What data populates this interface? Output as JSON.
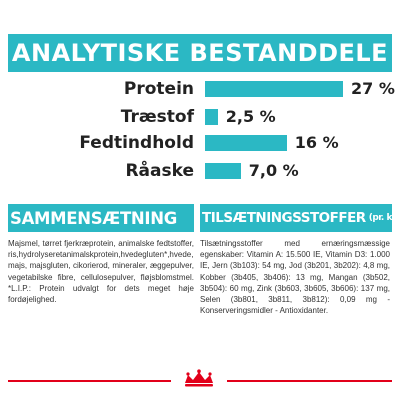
{
  "title": "ANALYTISKE BESTANDDELE",
  "chart_data": {
    "type": "bar",
    "orientation": "horizontal",
    "categories": [
      "Protein",
      "Træstof",
      "Fedtindhold",
      "Råaske"
    ],
    "values": [
      27,
      2.5,
      16,
      7.0
    ],
    "value_labels": [
      "27 %",
      "2,5 %",
      "16 %",
      "7,0 %"
    ],
    "xlim": [
      0,
      27
    ],
    "bar_color": "#2bb8c4",
    "grid": false
  },
  "composition": {
    "heading": "SAMMENSÆTNING",
    "text": "Majsmel, tørret fjerkræprotein, animalske fedtstoffer, ris,hydrolyseretanimalskprotein,hvedegluten*,hvede, majs, majsgluten, cikorierod, mineraler, æggepulver, vegetabilske fibre, cellulosepulver, fløjsblomstmel. *L.I.P.: Protein udvalgt for dets meget høje fordøjelighed."
  },
  "additives": {
    "heading": "TILSÆTNINGSSTOFFER",
    "heading_suffix": "(pr. kg)",
    "text": "Tilsætningsstoffer med ernæringsmæssige egenskaber: Vitamin A: 15.500 IE, Vitamin D3: 1.000 IE, Jern (3b103): 54 mg, Jod (3b201, 3b202): 4,8 mg, Kobber (3b405, 3b406): 13 mg, Mangan (3b502, 3b504): 60 mg, Zink (3b603, 3b605, 3b606): 137 mg, Selen (3b801, 3b811, 3b812): 0,09 mg - Konserveringsmidler - Antioxidanter."
  },
  "colors": {
    "accent": "#2bb8c4",
    "footer_line": "#e2001a"
  },
  "logo_icon": "royal-canin-crown-logo-icon"
}
